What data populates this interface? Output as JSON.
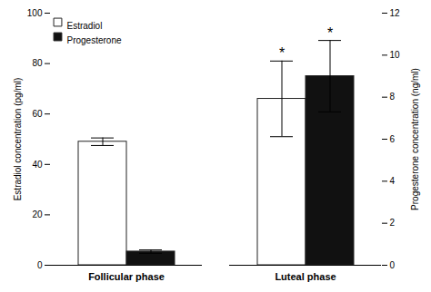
{
  "chart_data": {
    "type": "bar",
    "categories": [
      "Follicular phase",
      "Luteal phase"
    ],
    "series": [
      {
        "name": "Estradiol",
        "color": "white",
        "values": [
          49,
          66
        ],
        "errors": [
          1.5,
          15
        ]
      },
      {
        "name": "Progesterone",
        "color": "#111111",
        "values": [
          0.65,
          9.0
        ],
        "errors": [
          0.08,
          1.7
        ],
        "axis": "y2"
      }
    ],
    "ylabel": "Estradiol concentration (pg/ml)",
    "y2label": "Progesterone concentration (ng/ml)",
    "ylim": [
      0,
      100
    ],
    "yticks": [
      0,
      20,
      40,
      60,
      80,
      100
    ],
    "y2lim": [
      0,
      12
    ],
    "y2ticks": [
      0,
      2,
      4,
      6,
      8,
      10,
      12
    ],
    "grid": false,
    "legend": "upper left",
    "annotations": [
      {
        "text": "*",
        "category": "Luteal phase",
        "series": "Estradiol"
      },
      {
        "text": "*",
        "category": "Luteal phase",
        "series": "Progesterone"
      }
    ]
  }
}
